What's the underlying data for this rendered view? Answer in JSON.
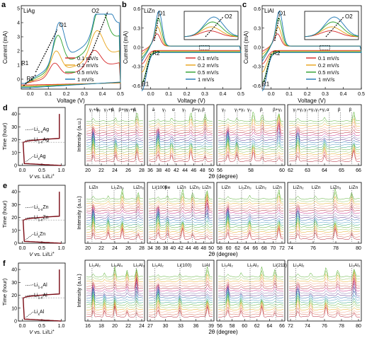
{
  "colors": {
    "s0": "#d62728",
    "s1": "#e8a317",
    "s2": "#2ca02c",
    "s3": "#1f77b4",
    "dark": "#7a0a14",
    "arrow": "#000000"
  },
  "cv_panels": [
    {
      "panel": "a",
      "name": "LiAg",
      "xlabel": "Voltage (V)",
      "ylabel": "Current (mA)",
      "xlim": [
        -0.05,
        0.5
      ],
      "ylim": [
        -0.7,
        5.2
      ],
      "xticks": [
        "0.0",
        "0.1",
        "0.2",
        "0.3",
        "0.4",
        "0.5"
      ],
      "xtick_vals": [
        0,
        0.1,
        0.2,
        0.3,
        0.4,
        0.5
      ],
      "yticks": [
        "0",
        "1",
        "2",
        "3",
        "4",
        "5"
      ],
      "ytick_vals": [
        0,
        1,
        2,
        3,
        4,
        5
      ],
      "labels": [
        {
          "t": "O1",
          "x": 0.16,
          "y": 3.7
        },
        {
          "t": "O2",
          "x": 0.34,
          "y": 4.7
        },
        {
          "t": "R1",
          "x": -0.05,
          "y": 1.0
        },
        {
          "t": "R2",
          "x": -0.02,
          "y": -0.1
        }
      ],
      "legend": [
        "0.1 mV/s",
        "0.2 mV/s",
        "0.5 mV/s",
        "1 mV/s"
      ]
    },
    {
      "panel": "b",
      "name": "LiZn",
      "xlabel": "Voltage (V)",
      "ylabel": "Current (mA)",
      "xlim": [
        -0.05,
        0.5
      ],
      "ylim": [
        -0.65,
        0.65
      ],
      "xticks": [
        "0.0",
        "0.1",
        "0.2",
        "0.3",
        "0.4",
        "0.5"
      ],
      "xtick_vals": [
        0,
        0.1,
        0.2,
        0.3,
        0.4,
        0.5
      ],
      "yticks": [
        "-0.6",
        "-0.3",
        "0.0",
        "0.3",
        "0.6"
      ],
      "ytick_vals": [
        -0.6,
        -0.3,
        0,
        0.3,
        0.6
      ],
      "labels": [
        {
          "t": "O1",
          "x": 0.04,
          "y": 0.5
        },
        {
          "t": "R2",
          "x": 0.01,
          "y": -0.12
        },
        {
          "t": "R1",
          "x": -0.05,
          "y": -0.6
        }
      ],
      "inset_label": "O2",
      "legend": [
        "0.1 mV/s",
        "0.2 mV/s",
        "0.5 mV/s",
        "1 mV/s"
      ]
    },
    {
      "panel": "c",
      "name": "LiAl",
      "xlabel": "Voltage (V)",
      "ylabel": "Current (mA)",
      "xlim": [
        -0.05,
        0.5
      ],
      "ylim": [
        -0.65,
        0.65
      ],
      "xticks": [
        "0.0",
        "0.1",
        "0.2",
        "0.3",
        "0.4",
        "0.5"
      ],
      "xtick_vals": [
        0,
        0.1,
        0.2,
        0.3,
        0.4,
        0.5
      ],
      "yticks": [
        "-0.6",
        "-0.3",
        "0.0",
        "0.3",
        "0.6"
      ],
      "ytick_vals": [
        -0.6,
        -0.3,
        0,
        0.3,
        0.6
      ],
      "labels": [
        {
          "t": "O1",
          "x": 0.04,
          "y": 0.5
        },
        {
          "t": "R2",
          "x": 0.01,
          "y": -0.12
        },
        {
          "t": "R1",
          "x": -0.05,
          "y": -0.6
        }
      ],
      "inset_label": "O2",
      "legend": [
        "0.1 mV/s",
        "0.2 mV/s",
        "0.5 mV/s",
        "1 mV/s"
      ]
    }
  ],
  "gcd_panels": [
    {
      "panel": "d",
      "ylabel": "Time (hour)",
      "xlabel_main": "V",
      "xlabel_rest": " vs. Li/Li",
      "yticks": [
        "0",
        "10",
        "20",
        "30",
        "40"
      ],
      "ytick_vals": [
        0,
        10,
        20,
        30,
        40
      ],
      "xticks": [
        "0.0",
        "0.5",
        "1.0"
      ],
      "xtick_vals": [
        0,
        0.5,
        1.0
      ],
      "annotations": [
        "Li",
        "Ag",
        "Li",
        "Ag",
        "Li",
        "Ag"
      ],
      "ann_lines": [
        [
          "Li",
          "1-x",
          "Ag"
        ],
        [
          "Li",
          "1-x",
          "Ag"
        ],
        [
          "Li",
          "x",
          "Ag"
        ]
      ]
    },
    {
      "panel": "e",
      "ylabel": "Time (hour)",
      "xlabel_main": "V",
      "xlabel_rest": " vs. Li/Li",
      "yticks": [
        "0",
        "10",
        "20",
        "30",
        "40"
      ],
      "ytick_vals": [
        0,
        10,
        20,
        30,
        40
      ],
      "xticks": [
        "0.0",
        "0.5",
        "1.0"
      ],
      "xtick_vals": [
        0,
        0.5,
        1.0
      ],
      "ann_lines": [
        [
          "Li",
          "1-x",
          "Zn"
        ],
        [
          "Li",
          "1-x",
          "Zn"
        ],
        [
          "Li",
          "x",
          "Zn"
        ]
      ]
    },
    {
      "panel": "f",
      "ylabel": "Time (hour)",
      "xlabel_main": "V",
      "xlabel_rest": " vs. Li/Li",
      "yticks": [
        "0",
        "10",
        "20",
        "30",
        "40"
      ],
      "ytick_vals": [
        0,
        10,
        20,
        30,
        40
      ],
      "xticks": [
        "0.0",
        "0.5",
        "1.0"
      ],
      "xtick_vals": [
        0,
        0.5,
        1.0
      ],
      "ann_lines": [
        [
          "Li",
          "1-x",
          "Al"
        ],
        [
          "Li",
          "1-x",
          "Al"
        ],
        [
          "Li",
          "x",
          "Al"
        ]
      ]
    }
  ],
  "xrd_rows": [
    {
      "ylabel": "Intensity (a.u.)",
      "xlabel": "2θ (degree)",
      "subpanels": [
        {
          "xticks": [
            "20",
            "22",
            "24",
            "26",
            "28"
          ],
          "labels": [
            "γ₁+δ₁",
            "γ₂",
            "γ₃+γ₁",
            "β",
            "β+γ₁",
            "γ₂+γ₁",
            "β"
          ]
        },
        {
          "xticks": [
            "36",
            "38",
            "40",
            "42",
            "44",
            "46",
            "48",
            "50"
          ],
          "labels": [
            "ā",
            "γ₁",
            "α",
            "γ₁",
            "β+γ₁",
            "β"
          ]
        },
        {
          "xticks": [
            "56",
            "58",
            "60"
          ],
          "labels": [
            "γ₂",
            "γ₁+γ₂",
            "γ₃",
            "β",
            "β+γ₂"
          ]
        },
        {
          "xticks": [
            "62",
            "63",
            "64",
            "65",
            "66"
          ],
          "labels": [
            "γ₁+γ₂",
            "γ₂+γ₃",
            "γ₂+γ₁",
            "α",
            "β",
            "β"
          ]
        }
      ]
    },
    {
      "ylabel": "Intensity (a.u.)",
      "xlabel": "2θ (degree)",
      "subpanels": [
        {
          "xticks": [
            "20",
            "22",
            "24",
            "26",
            "28"
          ],
          "labels": [
            "LiZn",
            "Li₂Zn₃",
            "LiZn₂"
          ]
        },
        {
          "xticks": [
            "34",
            "36",
            "38",
            "40",
            "42",
            "44",
            "46",
            "48",
            "50"
          ],
          "labels": [
            "Li(100)",
            "Be",
            "LiZn",
            "LiZn₂",
            "LiZn"
          ]
        },
        {
          "xticks": [
            "58",
            "60",
            "62",
            "64",
            "66",
            "68",
            "70",
            "72"
          ],
          "labels": [
            "LiZn",
            "Li₂Zn₃",
            "LiZn₂",
            "LiZn"
          ]
        },
        {
          "xticks": [
            "74",
            "76",
            "78",
            "80"
          ],
          "labels": [
            "LiZn₂",
            "LiZn",
            "LiZn₃",
            "LiZn"
          ]
        }
      ]
    },
    {
      "ylabel": "Intensity (a.u.)",
      "xlabel": "2θ (degree)",
      "subpanels": [
        {
          "xticks": [
            "16",
            "18",
            "20",
            "22",
            "24"
          ],
          "labels": [
            "Li₃Al₂",
            "Li₉Al₄",
            "Li₂Al₃"
          ]
        },
        {
          "xticks": [
            "27",
            "30",
            "33",
            "36",
            "39"
          ],
          "labels": [
            "Li₃Al₂",
            "Li(100)",
            "LiAl"
          ]
        },
        {
          "xticks": [
            "56",
            "58",
            "60",
            "62",
            "64",
            "66"
          ],
          "labels": [
            "Li₃Al₂",
            "Li₂Al₃",
            "Li(211)"
          ]
        },
        {
          "xticks": [
            "72",
            "74",
            "76",
            "78",
            "80"
          ],
          "labels": [
            "Li₃Al₂",
            "Li₂Al₃"
          ]
        }
      ]
    }
  ]
}
